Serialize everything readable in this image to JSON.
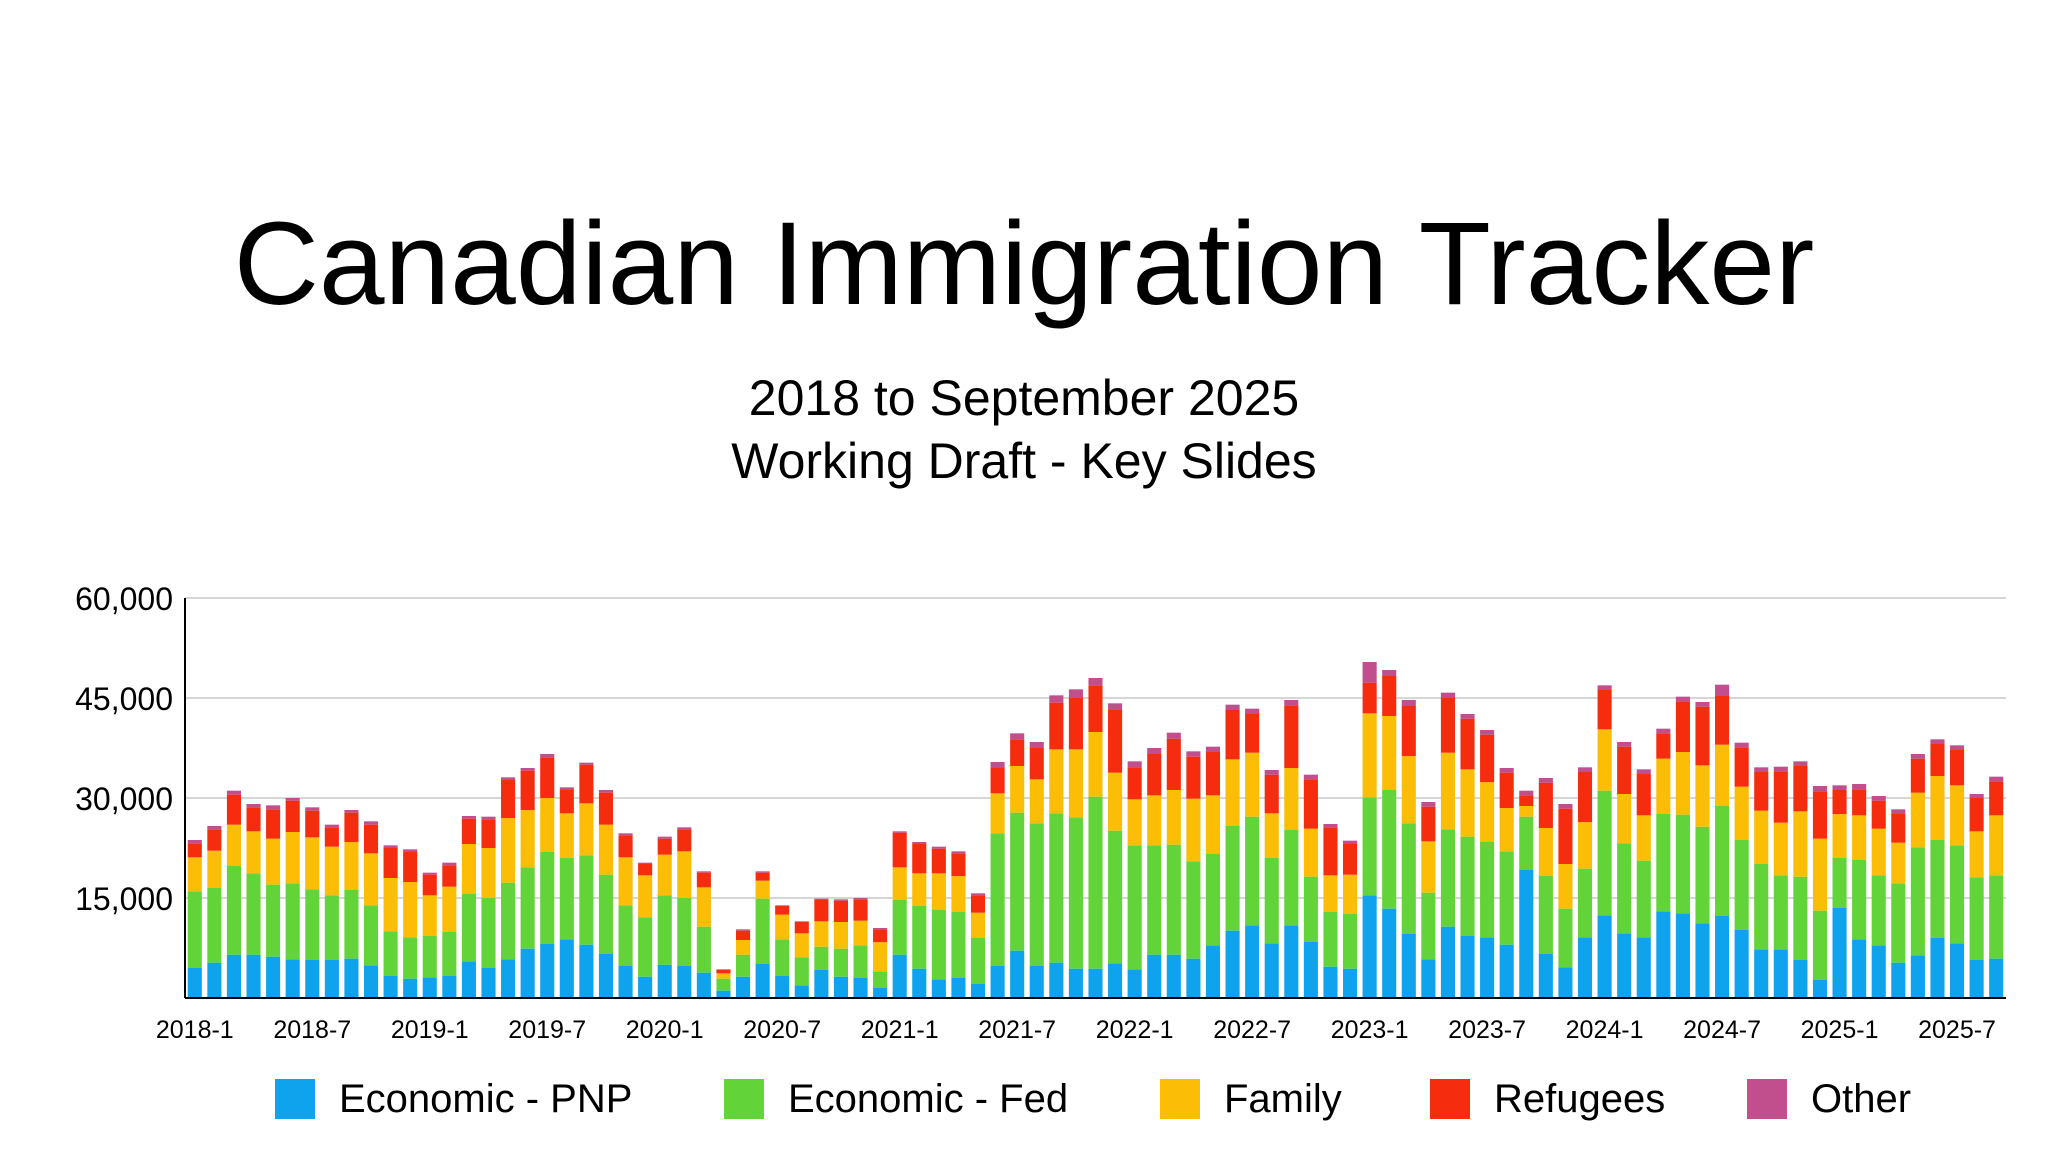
{
  "title": "Canadian Immigration Tracker",
  "subtitle_line1": "2018 to September 2025",
  "subtitle_line2": "Working Draft - Key Slides",
  "chart_data": {
    "type": "bar",
    "stacked": true,
    "title": "",
    "xlabel": "",
    "ylabel": "",
    "ylim": [
      0,
      60000
    ],
    "yticks": [
      15000,
      30000,
      45000,
      60000
    ],
    "ytick_labels": [
      "15,000",
      "30,000",
      "45,000",
      "60,000"
    ],
    "grid": true,
    "legend_position": "bottom",
    "xtick_labels": [
      {
        "index": 0,
        "label": "2018-1"
      },
      {
        "index": 6,
        "label": "2018-7"
      },
      {
        "index": 12,
        "label": "2019-1"
      },
      {
        "index": 18,
        "label": "2019-7"
      },
      {
        "index": 24,
        "label": "2020-1"
      },
      {
        "index": 30,
        "label": "2020-7"
      },
      {
        "index": 36,
        "label": "2021-1"
      },
      {
        "index": 42,
        "label": "2021-7"
      },
      {
        "index": 48,
        "label": "2022-1"
      },
      {
        "index": 54,
        "label": "2022-7"
      },
      {
        "index": 60,
        "label": "2023-1"
      },
      {
        "index": 66,
        "label": "2023-7"
      },
      {
        "index": 72,
        "label": "2024-1"
      },
      {
        "index": 78,
        "label": "2024-7"
      },
      {
        "index": 84,
        "label": "2025-1"
      },
      {
        "index": 90,
        "label": "2025-7"
      }
    ],
    "categories": [
      "2018-1",
      "2018-2",
      "2018-3",
      "2018-4",
      "2018-5",
      "2018-6",
      "2018-7",
      "2018-8",
      "2018-9",
      "2018-10",
      "2018-11",
      "2018-12",
      "2019-1",
      "2019-2",
      "2019-3",
      "2019-4",
      "2019-5",
      "2019-6",
      "2019-7",
      "2019-8",
      "2019-9",
      "2019-10",
      "2019-11",
      "2019-12",
      "2020-1",
      "2020-2",
      "2020-3",
      "2020-4",
      "2020-5",
      "2020-6",
      "2020-7",
      "2020-8",
      "2020-9",
      "2020-10",
      "2020-11",
      "2020-12",
      "2021-1",
      "2021-2",
      "2021-3",
      "2021-4",
      "2021-5",
      "2021-6",
      "2021-7",
      "2021-8",
      "2021-9",
      "2021-10",
      "2021-11",
      "2021-12",
      "2022-1",
      "2022-2",
      "2022-3",
      "2022-4",
      "2022-5",
      "2022-6",
      "2022-7",
      "2022-8",
      "2022-9",
      "2022-10",
      "2022-11",
      "2022-12",
      "2023-1",
      "2023-2",
      "2023-3",
      "2023-4",
      "2023-5",
      "2023-6",
      "2023-7",
      "2023-8",
      "2023-9",
      "2023-10",
      "2023-11",
      "2023-12",
      "2024-1",
      "2024-2",
      "2024-3",
      "2024-4",
      "2024-5",
      "2024-6",
      "2024-7",
      "2024-8",
      "2024-9",
      "2024-10",
      "2024-11",
      "2024-12",
      "2025-1",
      "2025-2",
      "2025-3",
      "2025-4",
      "2025-5",
      "2025-6",
      "2025-7",
      "2025-8",
      "2025-9"
    ],
    "series": [
      {
        "name": "Economic - PNP",
        "color": "#0fa3ee",
        "values": [
          4500,
          5300,
          6500,
          6500,
          6200,
          5800,
          5700,
          5700,
          5900,
          4900,
          3300,
          2900,
          3100,
          3300,
          5500,
          4500,
          5800,
          7400,
          8100,
          8800,
          8000,
          6600,
          4800,
          3200,
          5000,
          4800,
          3800,
          1100,
          3200,
          5100,
          3300,
          1900,
          4200,
          3200,
          3000,
          1500,
          6500,
          4400,
          2800,
          3000,
          2100,
          4800,
          7100,
          4800,
          5300,
          4400,
          4400,
          5200,
          4300,
          6500,
          6500,
          5900,
          7900,
          10100,
          10900,
          8200,
          10900,
          8400,
          4700,
          4400,
          15400,
          13400,
          9600,
          5800,
          10700,
          9300,
          9100,
          8000,
          19200,
          6600,
          4600,
          9100,
          12400,
          9700,
          9100,
          13000,
          12700,
          11200,
          12300,
          10200,
          7300,
          7300,
          5700,
          2700,
          13500,
          8800,
          7900,
          5300,
          6400,
          9000,
          8200,
          5700,
          5900
        ]
      },
      {
        "name": "Economic - Fed",
        "color": "#63d33a",
        "values": [
          11500,
          11200,
          13300,
          12200,
          10800,
          11400,
          10600,
          9700,
          10300,
          9000,
          6700,
          6200,
          6200,
          6600,
          10100,
          10500,
          11500,
          12200,
          13800,
          12200,
          13400,
          11900,
          9100,
          8900,
          10400,
          10200,
          6900,
          1800,
          3300,
          9800,
          5500,
          4200,
          3500,
          4200,
          4900,
          2400,
          8200,
          9400,
          10400,
          9900,
          6900,
          19900,
          20700,
          21400,
          22400,
          22700,
          25800,
          19900,
          18600,
          16400,
          16500,
          14600,
          13700,
          15700,
          16300,
          12800,
          14300,
          9800,
          8200,
          8200,
          14700,
          17800,
          16600,
          10000,
          14600,
          14900,
          14300,
          14000,
          8000,
          11700,
          8800,
          10300,
          18700,
          13500,
          11500,
          14600,
          14800,
          14500,
          16500,
          13500,
          12800,
          11100,
          12500,
          10400,
          7500,
          11900,
          10500,
          11900,
          16200,
          14700,
          14700,
          12400,
          12500
        ]
      },
      {
        "name": "Family",
        "color": "#fbbd05",
        "values": [
          5100,
          5600,
          6200,
          6300,
          6900,
          7700,
          7800,
          7300,
          7200,
          7800,
          8000,
          8300,
          6100,
          6800,
          7500,
          7500,
          9700,
          8600,
          8100,
          6700,
          7800,
          7500,
          7200,
          6300,
          6100,
          7000,
          5900,
          800,
          2200,
          2700,
          3700,
          3600,
          3800,
          4000,
          3700,
          4500,
          4900,
          4900,
          5500,
          5400,
          3800,
          6000,
          7000,
          6600,
          9600,
          10200,
          9700,
          8700,
          6900,
          7500,
          8200,
          9400,
          8800,
          10000,
          9600,
          6700,
          9300,
          7200,
          5500,
          5900,
          12600,
          11100,
          10100,
          7700,
          11500,
          10100,
          9000,
          6500,
          1600,
          7200,
          6700,
          7000,
          9200,
          7400,
          6800,
          8300,
          9400,
          9200,
          9200,
          8000,
          8000,
          7900,
          9800,
          10800,
          6600,
          6700,
          7000,
          6100,
          8200,
          9600,
          9000,
          6900,
          9000
        ]
      },
      {
        "name": "Refugees",
        "color": "#f52c0e",
        "values": [
          2100,
          3200,
          4500,
          3600,
          4400,
          4700,
          4000,
          2900,
          4400,
          4300,
          4500,
          4500,
          3100,
          3200,
          3800,
          4300,
          5700,
          5900,
          6100,
          3500,
          5800,
          4800,
          3300,
          1700,
          2400,
          3300,
          2200,
          500,
          1400,
          1200,
          1300,
          1700,
          3200,
          3200,
          3200,
          1900,
          5200,
          4400,
          3700,
          3400,
          2600,
          3800,
          4000,
          4700,
          7000,
          7800,
          7000,
          9400,
          4800,
          6200,
          7700,
          6300,
          6500,
          7400,
          5800,
          5800,
          9400,
          7400,
          7200,
          4600,
          4600,
          6000,
          7500,
          5200,
          8300,
          7600,
          7100,
          5300,
          1600,
          6800,
          8300,
          7500,
          5900,
          7100,
          6200,
          3800,
          7600,
          8800,
          7300,
          5900,
          5800,
          7700,
          6800,
          7100,
          3600,
          3900,
          4200,
          4300,
          5100,
          4800,
          5300,
          5000,
          5100
        ]
      },
      {
        "name": "Other",
        "color": "#c14f8d",
        "values": [
          500,
          500,
          600,
          500,
          600,
          400,
          500,
          400,
          400,
          500,
          400,
          400,
          300,
          400,
          400,
          400,
          400,
          400,
          500,
          400,
          300,
          400,
          300,
          200,
          300,
          300,
          200,
          100,
          200,
          200,
          100,
          100,
          200,
          200,
          200,
          200,
          200,
          300,
          300,
          300,
          300,
          900,
          900,
          900,
          1100,
          1200,
          1100,
          1000,
          900,
          900,
          900,
          800,
          800,
          800,
          800,
          700,
          800,
          700,
          500,
          500,
          3100,
          900,
          900,
          700,
          700,
          700,
          700,
          700,
          700,
          700,
          700,
          700,
          700,
          700,
          700,
          700,
          700,
          700,
          1700,
          700,
          700,
          700,
          700,
          800,
          700,
          800,
          700,
          700,
          700,
          700,
          700,
          600,
          700
        ]
      }
    ]
  }
}
